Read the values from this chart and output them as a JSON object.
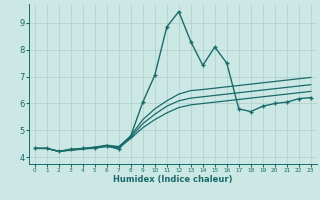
{
  "title": "",
  "xlabel": "Humidex (Indice chaleur)",
  "xlim": [
    -0.5,
    23.5
  ],
  "ylim": [
    3.75,
    9.7
  ],
  "yticks": [
    4,
    5,
    6,
    7,
    8,
    9
  ],
  "xticks": [
    0,
    1,
    2,
    3,
    4,
    5,
    6,
    7,
    8,
    9,
    10,
    11,
    12,
    13,
    14,
    15,
    16,
    17,
    18,
    19,
    20,
    21,
    22,
    23
  ],
  "bg_color": "#cce8e4",
  "grid_color": "#b0cccc",
  "line_color": "#1a6b6b",
  "lines": [
    {
      "x": [
        0,
        1,
        2,
        3,
        4,
        5,
        6,
        7,
        8,
        9,
        10,
        11,
        12,
        13,
        14,
        15,
        16,
        17,
        18,
        19,
        20,
        21,
        22,
        23
      ],
      "y": [
        4.33,
        4.33,
        4.22,
        4.3,
        4.33,
        4.33,
        4.42,
        4.3,
        4.8,
        6.05,
        7.05,
        8.85,
        9.42,
        8.3,
        7.42,
        8.1,
        7.5,
        5.8,
        5.7,
        5.9,
        6.0,
        6.05,
        6.18,
        6.22
      ],
      "marker": "+",
      "markersize": 3.5,
      "linewidth": 1.0
    },
    {
      "x": [
        0,
        1,
        2,
        3,
        4,
        5,
        6,
        7,
        8,
        9,
        10,
        11,
        12,
        13,
        14,
        15,
        16,
        17,
        18,
        19,
        20,
        21,
        22,
        23
      ],
      "y": [
        4.33,
        4.33,
        4.22,
        4.26,
        4.3,
        4.35,
        4.4,
        4.35,
        4.7,
        5.1,
        5.4,
        5.65,
        5.85,
        5.95,
        6.0,
        6.05,
        6.1,
        6.15,
        6.2,
        6.25,
        6.3,
        6.35,
        6.4,
        6.45
      ],
      "marker": null,
      "linewidth": 0.9
    },
    {
      "x": [
        0,
        1,
        2,
        3,
        4,
        5,
        6,
        7,
        8,
        9,
        10,
        11,
        12,
        13,
        14,
        15,
        16,
        17,
        18,
        19,
        20,
        21,
        22,
        23
      ],
      "y": [
        4.33,
        4.33,
        4.22,
        4.27,
        4.32,
        4.37,
        4.43,
        4.38,
        4.75,
        5.25,
        5.6,
        5.9,
        6.1,
        6.2,
        6.25,
        6.3,
        6.35,
        6.4,
        6.45,
        6.5,
        6.55,
        6.6,
        6.65,
        6.7
      ],
      "marker": null,
      "linewidth": 0.9
    },
    {
      "x": [
        0,
        1,
        2,
        3,
        4,
        5,
        6,
        7,
        8,
        9,
        10,
        11,
        12,
        13,
        14,
        15,
        16,
        17,
        18,
        19,
        20,
        21,
        22,
        23
      ],
      "y": [
        4.33,
        4.33,
        4.22,
        4.28,
        4.33,
        4.38,
        4.45,
        4.4,
        4.8,
        5.4,
        5.8,
        6.1,
        6.35,
        6.48,
        6.52,
        6.57,
        6.62,
        6.67,
        6.72,
        6.77,
        6.82,
        6.87,
        6.92,
        6.97
      ],
      "marker": null,
      "linewidth": 0.9
    }
  ]
}
